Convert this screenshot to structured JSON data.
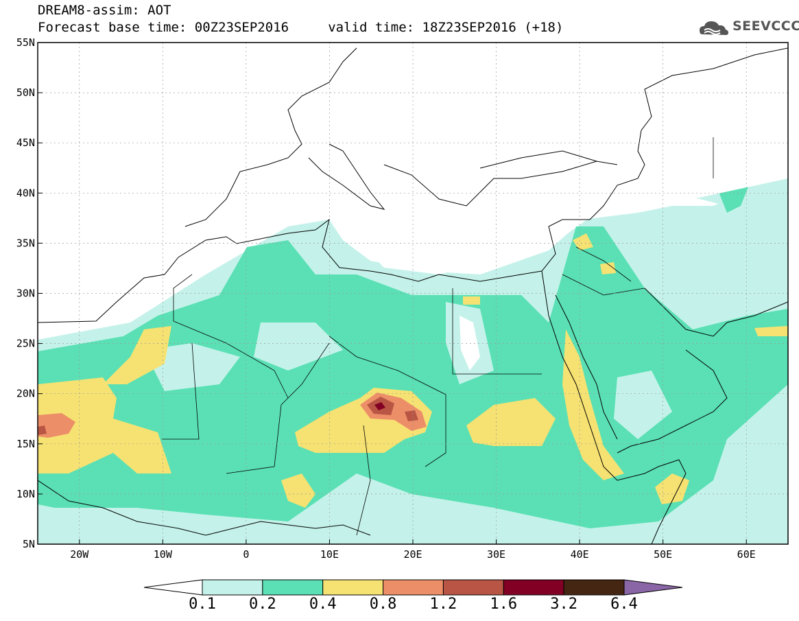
{
  "header": {
    "line1": "DREAM8-assim: AOT",
    "line2": "Forecast base time: 00Z23SEP2016     valid time: 18Z23SEP2016 (+18)",
    "logo_text": "SEEVCCC"
  },
  "map": {
    "lon_range": [
      -25,
      65
    ],
    "lat_range": [
      5,
      55
    ],
    "lat_ticks": [
      "55N",
      "50N",
      "45N",
      "40N",
      "35N",
      "30N",
      "25N",
      "20N",
      "15N",
      "10N",
      "5N"
    ],
    "lon_ticks": [
      "20W",
      "10W",
      "0",
      "10E",
      "20E",
      "30E",
      "40E",
      "50E",
      "60E"
    ]
  },
  "colorbar": {
    "colors": [
      "#ffffff",
      "#c4f2ea",
      "#5ae0b4",
      "#f6e272",
      "#ec8e68",
      "#b95544",
      "#820024",
      "#452612",
      "#8a66a6"
    ],
    "labels": [
      "0.1",
      "0.2",
      "0.4",
      "0.8",
      "1.2",
      "1.6",
      "3.2",
      "6.4"
    ]
  }
}
